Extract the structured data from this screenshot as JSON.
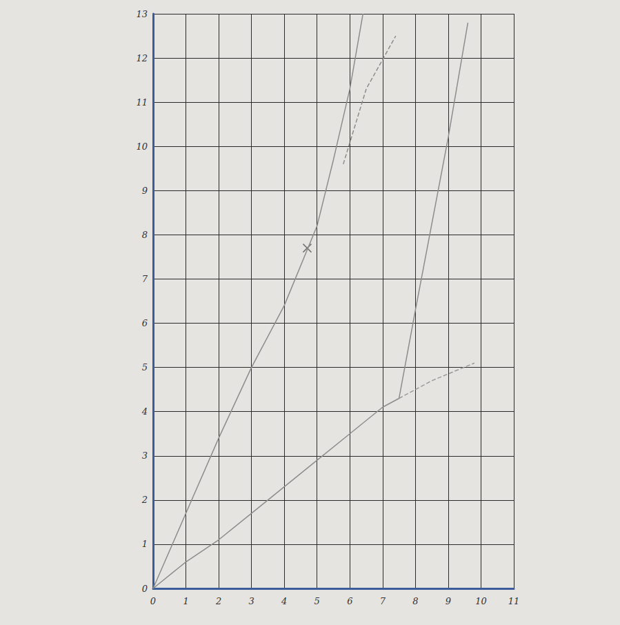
{
  "chart_data": {
    "type": "line",
    "xlim": [
      0,
      11
    ],
    "xticks": [
      0,
      1,
      2,
      3,
      4,
      5,
      6,
      7,
      8,
      9,
      10,
      11
    ],
    "ylim": [
      0,
      13
    ],
    "yticks": [
      0,
      1,
      2,
      3,
      4,
      5,
      6,
      7,
      8,
      9,
      10,
      11,
      12,
      13
    ],
    "grid": true,
    "series": [
      {
        "color": "#8c8c8c",
        "line_style": "solid",
        "marker": "none",
        "x": [
          0,
          1,
          2,
          3,
          4,
          5,
          5.5,
          6,
          6.4
        ],
        "values": [
          0,
          1.7,
          3.4,
          5,
          6.4,
          8.2,
          9.7,
          11.3,
          13
        ]
      },
      {
        "color": "#8c8c8c",
        "line_style": "solid",
        "marker": "none",
        "x": [
          0,
          1,
          2,
          3,
          4,
          5,
          6,
          7,
          7.5
        ],
        "values": [
          0,
          0.6,
          1.1,
          1.7,
          2.3,
          2.9,
          3.5,
          4.1,
          4.3
        ]
      },
      {
        "color": "#9a9a9a",
        "line_style": "dashed",
        "marker": "none",
        "x": [
          7.5,
          8.5,
          9.8
        ],
        "values": [
          4.3,
          4.7,
          5.1
        ]
      },
      {
        "color": "#8c8c8c",
        "line_style": "solid",
        "marker": "none",
        "x": [
          7.5,
          8,
          9,
          9.6
        ],
        "values": [
          4.3,
          6.3,
          10.2,
          12.8
        ]
      },
      {
        "color": "#8c8c8c",
        "line_style": "dashed",
        "marker": "none",
        "x": [
          5.8,
          6.5,
          7.4
        ],
        "values": [
          9.6,
          11.3,
          12.5
        ]
      },
      {
        "type": "scatter",
        "color": "#555555",
        "marker": "cross",
        "x": [
          4.7
        ],
        "values": [
          7.7
        ]
      }
    ]
  }
}
